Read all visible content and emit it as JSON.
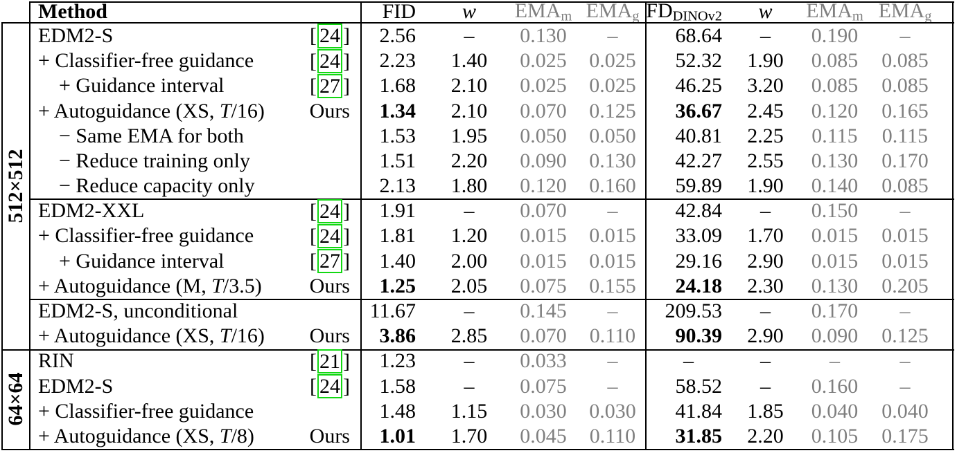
{
  "colors": {
    "text": "#000000",
    "muted_gray": "#7f7f7f",
    "citation_box_green": "#12D812",
    "rule_black": "#000000",
    "background": "#ffffff"
  },
  "table": {
    "header": {
      "method": "Method",
      "columns": [
        {
          "label": "FID",
          "sub": "",
          "italic": false,
          "gray": false
        },
        {
          "label": "w",
          "sub": "",
          "italic": true,
          "gray": false
        },
        {
          "label": "EMA",
          "sub": "m",
          "italic": false,
          "gray": true
        },
        {
          "label": "EMA",
          "sub": "g",
          "italic": false,
          "gray": true
        },
        {
          "label": "FD",
          "sub": "DINOv2",
          "italic": false,
          "gray": false
        },
        {
          "label": "w",
          "sub": "",
          "italic": true,
          "gray": false
        },
        {
          "label": "EMA",
          "sub": "m",
          "italic": false,
          "gray": true
        },
        {
          "label": "EMA",
          "sub": "g",
          "italic": false,
          "gray": true
        }
      ]
    },
    "groups": [
      {
        "label": "512×512",
        "rows": [
          {
            "method": [
              {
                "t": "EDM2-S"
              }
            ],
            "indent": 0,
            "cite": "24",
            "values": [
              "2.56",
              "–",
              "0.130",
              "–",
              "68.64",
              "–",
              "0.190",
              "–"
            ],
            "bold": []
          },
          {
            "method": [
              {
                "t": "+ Classifier-free guidance"
              }
            ],
            "indent": 0,
            "cite": "24",
            "values": [
              "2.23",
              "1.40",
              "0.025",
              "0.025",
              "52.32",
              "1.90",
              "0.085",
              "0.085"
            ],
            "bold": []
          },
          {
            "method": [
              {
                "t": "+ Guidance interval"
              }
            ],
            "indent": 1,
            "cite": "27",
            "values": [
              "1.68",
              "2.10",
              "0.025",
              "0.025",
              "46.25",
              "3.20",
              "0.085",
              "0.085"
            ],
            "bold": []
          },
          {
            "method": [
              {
                "t": "+ Autoguidance (XS, "
              },
              {
                "t": "T",
                "i": true
              },
              {
                "t": "/16)"
              }
            ],
            "indent": 0,
            "ours": "Ours",
            "values": [
              "1.34",
              "2.10",
              "0.070",
              "0.125",
              "36.67",
              "2.45",
              "0.120",
              "0.165"
            ],
            "bold": [
              0,
              4
            ]
          },
          {
            "method": [
              {
                "t": "− Same EMA for both"
              }
            ],
            "indent": 1,
            "values": [
              "1.53",
              "1.95",
              "0.050",
              "0.050",
              "40.81",
              "2.25",
              "0.115",
              "0.115"
            ],
            "bold": []
          },
          {
            "method": [
              {
                "t": "− Reduce training only"
              }
            ],
            "indent": 1,
            "values": [
              "1.51",
              "2.20",
              "0.090",
              "0.130",
              "42.27",
              "2.55",
              "0.130",
              "0.170"
            ],
            "bold": []
          },
          {
            "method": [
              {
                "t": "− Reduce capacity only"
              }
            ],
            "indent": 1,
            "values": [
              "2.13",
              "1.80",
              "0.120",
              "0.160",
              "59.89",
              "1.90",
              "0.140",
              "0.085"
            ],
            "bold": []
          },
          {
            "method": [
              {
                "t": "EDM2-XXL"
              }
            ],
            "indent": 0,
            "cite": "24",
            "values": [
              "1.91",
              "–",
              "0.070",
              "–",
              "42.84",
              "–",
              "0.150",
              "–"
            ],
            "bold": []
          },
          {
            "method": [
              {
                "t": "+ Classifier-free guidance"
              }
            ],
            "indent": 0,
            "cite": "24",
            "values": [
              "1.81",
              "1.20",
              "0.015",
              "0.015",
              "33.09",
              "1.70",
              "0.015",
              "0.015"
            ],
            "bold": []
          },
          {
            "method": [
              {
                "t": "+ Guidance interval"
              }
            ],
            "indent": 1,
            "cite": "27",
            "values": [
              "1.40",
              "2.00",
              "0.015",
              "0.015",
              "29.16",
              "2.90",
              "0.015",
              "0.015"
            ],
            "bold": []
          },
          {
            "method": [
              {
                "t": "+ Autoguidance (M, "
              },
              {
                "t": "T",
                "i": true
              },
              {
                "t": "/3.5)"
              }
            ],
            "indent": 0,
            "ours": "Ours",
            "values": [
              "1.25",
              "2.05",
              "0.075",
              "0.155",
              "24.18",
              "2.30",
              "0.130",
              "0.205"
            ],
            "bold": [
              0,
              4
            ]
          },
          {
            "method": [
              {
                "t": "EDM2-S, unconditional"
              }
            ],
            "indent": 0,
            "values": [
              "11.67",
              "–",
              "0.145",
              "–",
              "209.53",
              "–",
              "0.170",
              "–"
            ],
            "bold": []
          },
          {
            "method": [
              {
                "t": "+ Autoguidance (XS, "
              },
              {
                "t": "T",
                "i": true
              },
              {
                "t": "/16)"
              }
            ],
            "indent": 0,
            "ours": "Ours",
            "values": [
              "3.86",
              "2.85",
              "0.070",
              "0.110",
              "90.39",
              "2.90",
              "0.090",
              "0.125"
            ],
            "bold": [
              0,
              4
            ]
          }
        ]
      },
      {
        "label": "64×64",
        "rows": [
          {
            "method": [
              {
                "t": "RIN"
              }
            ],
            "indent": 0,
            "cite": "21",
            "values": [
              "1.23",
              "–",
              "0.033",
              "–",
              "–",
              "–",
              "–",
              "–"
            ],
            "bold": []
          },
          {
            "method": [
              {
                "t": "EDM2-S"
              }
            ],
            "indent": 0,
            "cite": "24",
            "values": [
              "1.58",
              "–",
              "0.075",
              "–",
              "58.52",
              "–",
              "0.160",
              "–"
            ],
            "bold": []
          },
          {
            "method": [
              {
                "t": "+ Classifier-free guidance"
              }
            ],
            "indent": 0,
            "values": [
              "1.48",
              "1.15",
              "0.030",
              "0.030",
              "41.84",
              "1.85",
              "0.040",
              "0.040"
            ],
            "bold": []
          },
          {
            "method": [
              {
                "t": "+ Autoguidance (XS, "
              },
              {
                "t": "T",
                "i": true
              },
              {
                "t": "/8)"
              }
            ],
            "indent": 0,
            "ours": "Ours",
            "values": [
              "1.01",
              "1.70",
              "0.045",
              "0.110",
              "31.85",
              "2.20",
              "0.105",
              "0.175"
            ],
            "bold": [
              0,
              4
            ]
          }
        ]
      }
    ]
  }
}
